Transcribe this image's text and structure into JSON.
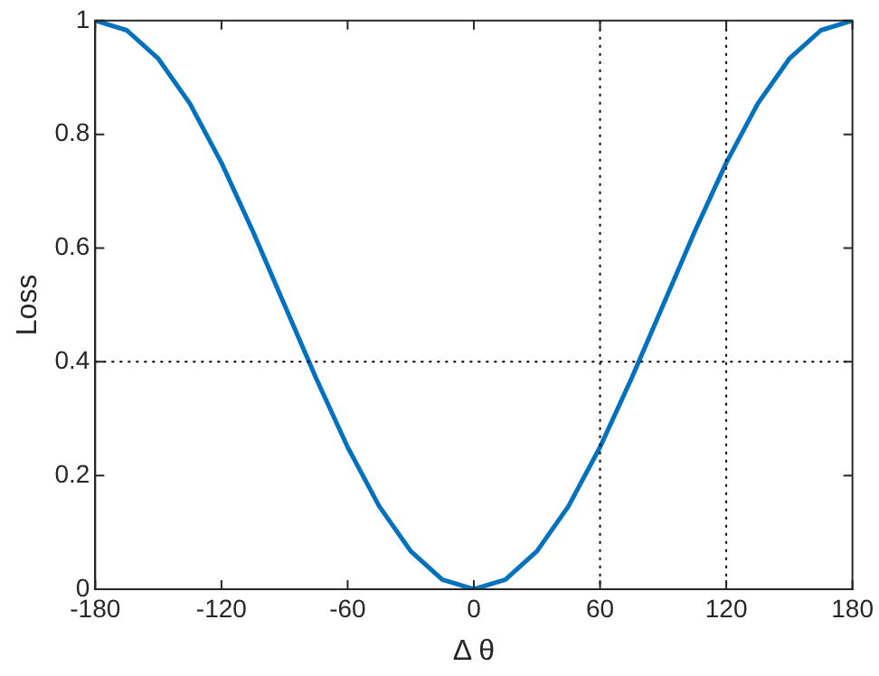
{
  "chart_data": {
    "type": "line",
    "xlabel": "Δ θ",
    "ylabel": "Loss",
    "x": [
      -180,
      -165,
      -150,
      -135,
      -120,
      -105,
      -90,
      -75,
      -60,
      -45,
      -30,
      -15,
      0,
      15,
      30,
      45,
      60,
      75,
      90,
      105,
      120,
      135,
      150,
      165,
      180
    ],
    "series": [
      {
        "color": "#0072bd",
        "values": [
          1,
          0.983,
          0.933,
          0.854,
          0.75,
          0.629,
          0.5,
          0.371,
          0.25,
          0.146,
          0.067,
          0.017,
          0,
          0.017,
          0.067,
          0.146,
          0.25,
          0.371,
          0.5,
          0.629,
          0.75,
          0.854,
          0.933,
          0.983,
          1
        ]
      }
    ],
    "xlim": [
      -180,
      180
    ],
    "xticks": [
      -180,
      -120,
      -60,
      0,
      60,
      120,
      180
    ],
    "ylim": [
      0,
      1
    ],
    "yticks": [
      0,
      0.2,
      0.4,
      0.6,
      0.8,
      1
    ],
    "ref_lines": [
      {
        "axis": "x",
        "value": 60,
        "color": "#000000",
        "line_style": "dotted"
      },
      {
        "axis": "x",
        "value": 120,
        "color": "#000000",
        "line_style": "dotted"
      },
      {
        "axis": "y",
        "value": 0.4,
        "color": "#000000",
        "line_style": "dotted"
      }
    ],
    "grid": false,
    "legend": false,
    "marker": "none",
    "line_style": "solid"
  }
}
